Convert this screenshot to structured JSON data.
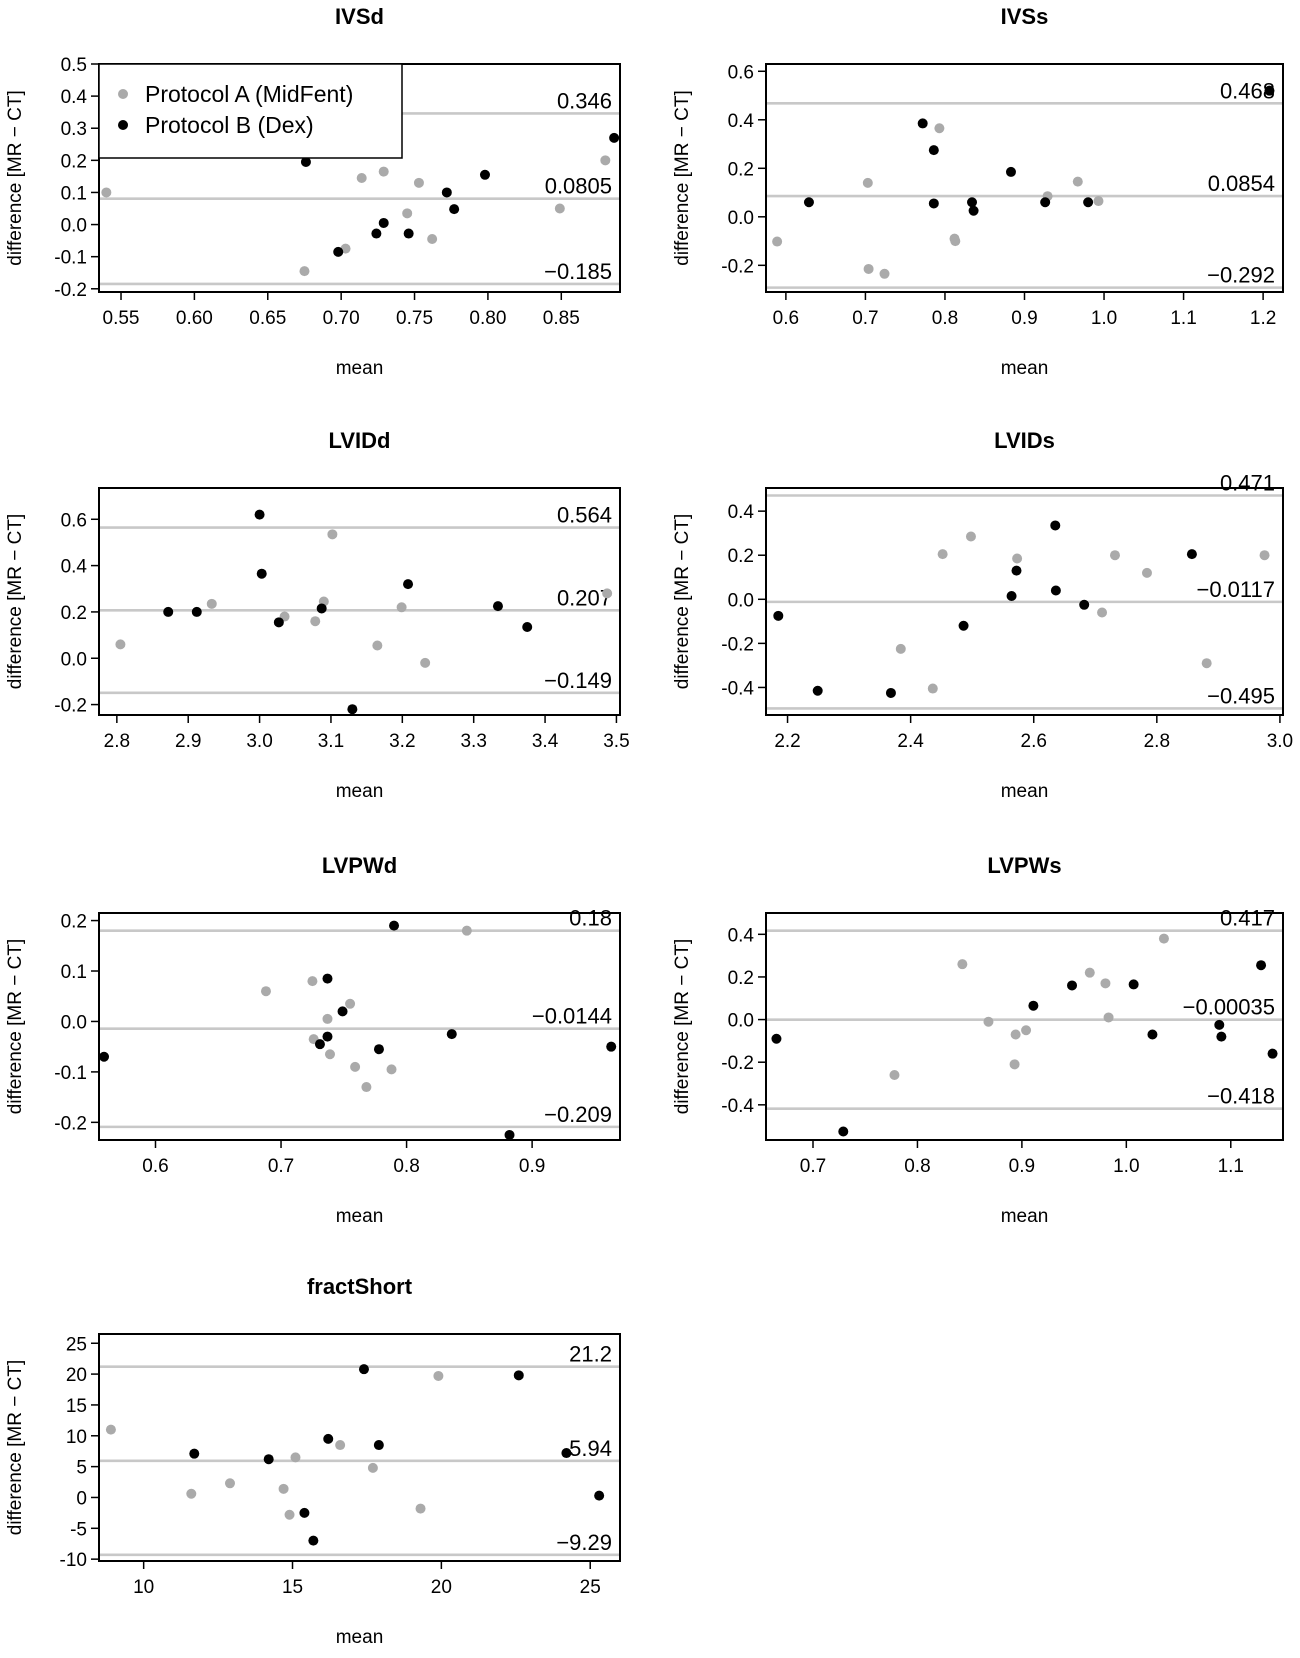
{
  "chart_data": [
    {
      "type": "scatter",
      "title": "IVSd",
      "xlabel": "mean",
      "ylabel": "difference [MR − CT]",
      "xlim": [
        0.535,
        0.89
      ],
      "ylim": [
        -0.21,
        0.5
      ],
      "xticks": [
        "0.55",
        "0.60",
        "0.65",
        "0.70",
        "0.75",
        "0.80",
        "0.85"
      ],
      "yticks": [
        "-0.2",
        "-0.1",
        "0.0",
        "0.1",
        "0.2",
        "0.3",
        "0.4",
        "0.5"
      ],
      "hlines": [
        {
          "value": 0.346,
          "label": "0.346"
        },
        {
          "value": 0.0805,
          "label": "0.0805"
        },
        {
          "value": -0.185,
          "label": "−0.185"
        }
      ],
      "legend": {
        "position": "top-left",
        "entries": [
          {
            "label": "Protocol A (MidFent)",
            "color": "#aaaaaa"
          },
          {
            "label": "Protocol B (Dex)",
            "color": "#000000"
          }
        ]
      },
      "series": [
        {
          "name": "Protocol A (MidFent)",
          "color": "#aaaaaa",
          "points": [
            [
              0.54,
              0.1
            ],
            [
              0.675,
              -0.145
            ],
            [
              0.703,
              -0.075
            ],
            [
              0.714,
              0.145
            ],
            [
              0.729,
              0.165
            ],
            [
              0.745,
              0.035
            ],
            [
              0.753,
              0.13
            ],
            [
              0.762,
              -0.045
            ],
            [
              0.849,
              0.05
            ],
            [
              0.88,
              0.2
            ]
          ]
        },
        {
          "name": "Protocol B (Dex)",
          "color": "#000000",
          "points": [
            [
              0.676,
              0.195
            ],
            [
              0.698,
              -0.085
            ],
            [
              0.724,
              -0.028
            ],
            [
              0.729,
              0.005
            ],
            [
              0.746,
              -0.028
            ],
            [
              0.772,
              0.1
            ],
            [
              0.777,
              0.048
            ],
            [
              0.798,
              0.155
            ],
            [
              0.886,
              0.27
            ]
          ]
        }
      ]
    },
    {
      "type": "scatter",
      "title": "IVSs",
      "xlabel": "mean",
      "ylabel": "difference [MR − CT]",
      "xlim": [
        0.575,
        1.225
      ],
      "ylim": [
        -0.31,
        0.63
      ],
      "xticks": [
        "0.6",
        "0.7",
        "0.8",
        "0.9",
        "1.0",
        "1.1",
        "1.2"
      ],
      "yticks": [
        "-0.2",
        "0.0",
        "0.2",
        "0.4",
        "0.6"
      ],
      "hlines": [
        {
          "value": 0.468,
          "label": "0.468"
        },
        {
          "value": 0.0854,
          "label": "0.0854"
        },
        {
          "value": -0.292,
          "label": "−0.292"
        }
      ],
      "series": [
        {
          "name": "Protocol A (MidFent)",
          "color": "#aaaaaa",
          "points": [
            [
              0.589,
              -0.102
            ],
            [
              0.703,
              0.14
            ],
            [
              0.704,
              -0.215
            ],
            [
              0.724,
              -0.235
            ],
            [
              0.793,
              0.365
            ],
            [
              0.812,
              -0.09
            ],
            [
              0.813,
              -0.1
            ],
            [
              0.929,
              0.085
            ],
            [
              0.967,
              0.145
            ],
            [
              0.993,
              0.065
            ]
          ]
        },
        {
          "name": "Protocol B (Dex)",
          "color": "#000000",
          "points": [
            [
              0.629,
              0.06
            ],
            [
              0.772,
              0.385
            ],
            [
              0.786,
              0.275
            ],
            [
              0.786,
              0.055
            ],
            [
              0.834,
              0.06
            ],
            [
              0.836,
              0.025
            ],
            [
              0.883,
              0.185
            ],
            [
              0.926,
              0.06
            ],
            [
              0.98,
              0.06
            ],
            [
              1.208,
              0.52
            ]
          ]
        }
      ]
    },
    {
      "type": "scatter",
      "title": "LVIDd",
      "xlabel": "mean",
      "ylabel": "difference [MR − CT]",
      "xlim": [
        2.775,
        3.505
      ],
      "ylim": [
        -0.245,
        0.735
      ],
      "xticks": [
        "2.8",
        "2.9",
        "3.0",
        "3.1",
        "3.2",
        "3.3",
        "3.4",
        "3.5"
      ],
      "yticks": [
        "-0.2",
        "0.0",
        "0.2",
        "0.4",
        "0.6"
      ],
      "hlines": [
        {
          "value": 0.564,
          "label": "0.564"
        },
        {
          "value": 0.207,
          "label": "0.207"
        },
        {
          "value": -0.149,
          "label": "−0.149"
        }
      ],
      "series": [
        {
          "name": "Protocol A (MidFent)",
          "color": "#aaaaaa",
          "points": [
            [
              2.805,
              0.06
            ],
            [
              2.933,
              0.235
            ],
            [
              3.035,
              0.18
            ],
            [
              3.078,
              0.16
            ],
            [
              3.09,
              0.245
            ],
            [
              3.102,
              0.535
            ],
            [
              3.165,
              0.055
            ],
            [
              3.199,
              0.22
            ],
            [
              3.232,
              -0.02
            ],
            [
              3.487,
              0.28
            ]
          ]
        },
        {
          "name": "Protocol B (Dex)",
          "color": "#000000",
          "points": [
            [
              2.872,
              0.2
            ],
            [
              2.912,
              0.2
            ],
            [
              3.0,
              0.62
            ],
            [
              3.003,
              0.365
            ],
            [
              3.027,
              0.155
            ],
            [
              3.087,
              0.215
            ],
            [
              3.13,
              -0.22
            ],
            [
              3.208,
              0.32
            ],
            [
              3.334,
              0.225
            ],
            [
              3.375,
              0.135
            ]
          ]
        }
      ]
    },
    {
      "type": "scatter",
      "title": "LVIDs",
      "xlabel": "mean",
      "ylabel": "difference [MR − CT]",
      "xlim": [
        2.165,
        3.005
      ],
      "ylim": [
        -0.525,
        0.505
      ],
      "xticks": [
        "2.2",
        "2.4",
        "2.6",
        "2.8",
        "3.0"
      ],
      "yticks": [
        "-0.4",
        "-0.2",
        "0.0",
        "0.2",
        "0.4"
      ],
      "hlines": [
        {
          "value": 0.471,
          "label": "0.471"
        },
        {
          "value": -0.0117,
          "label": "−0.0117"
        },
        {
          "value": -0.495,
          "label": "−0.495"
        }
      ],
      "series": [
        {
          "name": "Protocol A (MidFent)",
          "color": "#aaaaaa",
          "points": [
            [
              2.384,
              -0.225
            ],
            [
              2.436,
              -0.405
            ],
            [
              2.452,
              0.205
            ],
            [
              2.498,
              0.285
            ],
            [
              2.573,
              0.185
            ],
            [
              2.711,
              -0.06
            ],
            [
              2.732,
              0.2
            ],
            [
              2.784,
              0.12
            ],
            [
              2.881,
              -0.29
            ],
            [
              2.975,
              0.2
            ]
          ]
        },
        {
          "name": "Protocol B (Dex)",
          "color": "#000000",
          "points": [
            [
              2.185,
              -0.075
            ],
            [
              2.249,
              -0.415
            ],
            [
              2.368,
              -0.425
            ],
            [
              2.486,
              -0.12
            ],
            [
              2.564,
              0.015
            ],
            [
              2.572,
              0.13
            ],
            [
              2.635,
              0.335
            ],
            [
              2.636,
              0.04
            ],
            [
              2.682,
              -0.025
            ],
            [
              2.857,
              0.205
            ]
          ]
        }
      ]
    },
    {
      "type": "scatter",
      "title": "LVPWd",
      "xlabel": "mean",
      "ylabel": "difference [MR − CT]",
      "xlim": [
        0.555,
        0.97
      ],
      "ylim": [
        -0.235,
        0.215
      ],
      "xticks": [
        "0.6",
        "0.7",
        "0.8",
        "0.9"
      ],
      "yticks": [
        "-0.2",
        "-0.1",
        "0.0",
        "0.1",
        "0.2"
      ],
      "hlines": [
        {
          "value": 0.18,
          "label": "0.18"
        },
        {
          "value": -0.0144,
          "label": "−0.0144"
        },
        {
          "value": -0.209,
          "label": "−0.209"
        }
      ],
      "series": [
        {
          "name": "Protocol A (MidFent)",
          "color": "#aaaaaa",
          "points": [
            [
              0.688,
              0.06
            ],
            [
              0.725,
              0.08
            ],
            [
              0.726,
              -0.035
            ],
            [
              0.737,
              0.005
            ],
            [
              0.739,
              -0.065
            ],
            [
              0.755,
              0.035
            ],
            [
              0.759,
              -0.09
            ],
            [
              0.768,
              -0.13
            ],
            [
              0.788,
              -0.095
            ],
            [
              0.848,
              0.18
            ]
          ]
        },
        {
          "name": "Protocol B (Dex)",
          "color": "#000000",
          "points": [
            [
              0.559,
              -0.07
            ],
            [
              0.731,
              -0.045
            ],
            [
              0.737,
              -0.03
            ],
            [
              0.737,
              0.085
            ],
            [
              0.749,
              0.02
            ],
            [
              0.778,
              -0.055
            ],
            [
              0.79,
              0.19
            ],
            [
              0.836,
              -0.025
            ],
            [
              0.882,
              -0.225
            ],
            [
              0.963,
              -0.05
            ]
          ]
        }
      ]
    },
    {
      "type": "scatter",
      "title": "LVPWs",
      "xlabel": "mean",
      "ylabel": "difference [MR − CT]",
      "xlim": [
        0.655,
        1.15
      ],
      "ylim": [
        -0.565,
        0.5
      ],
      "xticks": [
        "0.7",
        "0.8",
        "0.9",
        "1.0",
        "1.1"
      ],
      "yticks": [
        "-0.4",
        "-0.2",
        "0.0",
        "0.2",
        "0.4"
      ],
      "hlines": [
        {
          "value": 0.417,
          "label": "0.417"
        },
        {
          "value": -0.00035,
          "label": "−0.00035"
        },
        {
          "value": -0.418,
          "label": "−0.418"
        }
      ],
      "series": [
        {
          "name": "Protocol A (MidFent)",
          "color": "#aaaaaa",
          "points": [
            [
              0.778,
              -0.26
            ],
            [
              0.843,
              0.26
            ],
            [
              0.868,
              -0.01
            ],
            [
              0.893,
              -0.21
            ],
            [
              0.894,
              -0.07
            ],
            [
              0.904,
              -0.05
            ],
            [
              0.965,
              0.22
            ],
            [
              0.98,
              0.17
            ],
            [
              0.983,
              0.01
            ],
            [
              1.036,
              0.38
            ]
          ]
        },
        {
          "name": "Protocol B (Dex)",
          "color": "#000000",
          "points": [
            [
              0.665,
              -0.09
            ],
            [
              0.729,
              -0.525
            ],
            [
              0.911,
              0.065
            ],
            [
              0.948,
              0.16
            ],
            [
              1.007,
              0.165
            ],
            [
              1.025,
              -0.07
            ],
            [
              1.089,
              -0.025
            ],
            [
              1.091,
              -0.08
            ],
            [
              1.129,
              0.255
            ],
            [
              1.14,
              -0.16
            ]
          ]
        }
      ]
    },
    {
      "type": "scatter",
      "title": "fractShort",
      "xlabel": "mean",
      "ylabel": "difference [MR − CT]",
      "xlim": [
        8.5,
        26.0
      ],
      "ylim": [
        -10.3,
        26.5
      ],
      "xticks": [
        "10",
        "15",
        "20",
        "25"
      ],
      "yticks": [
        "-10",
        "-5",
        "0",
        "5",
        "10",
        "15",
        "20",
        "25"
      ],
      "hlines": [
        {
          "value": 21.2,
          "label": "21.2"
        },
        {
          "value": 5.94,
          "label": "5.94"
        },
        {
          "value": -9.29,
          "label": "−9.29"
        }
      ],
      "series": [
        {
          "name": "Protocol A (MidFent)",
          "color": "#aaaaaa",
          "points": [
            [
              8.9,
              11.0
            ],
            [
              11.6,
              0.6
            ],
            [
              12.9,
              2.3
            ],
            [
              14.7,
              1.4
            ],
            [
              14.9,
              -2.8
            ],
            [
              15.1,
              6.5
            ],
            [
              16.6,
              8.5
            ],
            [
              17.7,
              4.8
            ],
            [
              19.3,
              -1.8
            ],
            [
              19.9,
              19.7
            ]
          ]
        },
        {
          "name": "Protocol B (Dex)",
          "color": "#000000",
          "points": [
            [
              11.7,
              7.1
            ],
            [
              14.2,
              6.2
            ],
            [
              15.4,
              -2.5
            ],
            [
              15.7,
              -7.0
            ],
            [
              16.2,
              9.5
            ],
            [
              17.4,
              20.8
            ],
            [
              17.9,
              8.5
            ],
            [
              22.6,
              19.8
            ],
            [
              24.2,
              7.2
            ],
            [
              25.3,
              0.3
            ]
          ]
        }
      ]
    }
  ]
}
